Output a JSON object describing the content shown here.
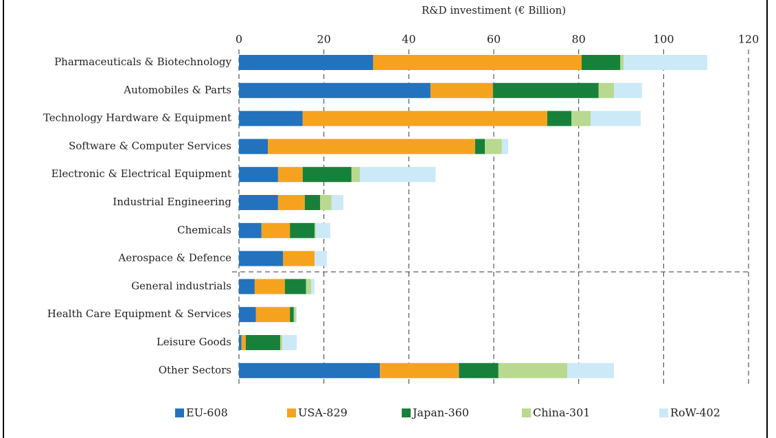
{
  "chart_data": {
    "type": "stacked-bar-horizontal",
    "xlabel": "R&D investiment (€ Billion)",
    "categories": [
      "Pharmaceuticals & Biotechnology",
      "Automobiles & Parts",
      "Technology Hardware & Equipment",
      "Software & Computer Services",
      "Electronic & Electrical Equipment",
      "Industrial Engineering",
      "Chemicals",
      "Aerospace & Defence",
      "General industrials",
      "Health Care Equipment & Services",
      "Leisure Goods",
      "Other Sectors"
    ],
    "series": [
      {
        "name": "EU-608",
        "color": "#2372bd",
        "values": [
          31.6,
          45.1,
          15.0,
          6.8,
          9.2,
          9.2,
          5.3,
          10.4,
          3.7,
          4.0,
          0.6,
          33.2
        ]
      },
      {
        "name": "USA-829",
        "color": "#f5a31f",
        "values": [
          49.1,
          14.7,
          57.6,
          48.8,
          5.8,
          6.3,
          6.7,
          7.4,
          7.1,
          8.0,
          1.0,
          18.6
        ]
      },
      {
        "name": "Japan-360",
        "color": "#17813b",
        "values": [
          9.1,
          24.9,
          5.7,
          2.3,
          11.5,
          3.6,
          5.8,
          0,
          5.0,
          0.9,
          8.1,
          9.3
        ]
      },
      {
        "name": "China-301",
        "color": "#b8d98f",
        "values": [
          0.8,
          3.6,
          4.5,
          4.0,
          2.0,
          2.7,
          0.3,
          0,
          1.2,
          0.5,
          0.5,
          16.2
        ]
      },
      {
        "name": "RoW-402",
        "color": "#cce9f8",
        "values": [
          19.7,
          6.6,
          11.8,
          1.5,
          17.8,
          2.8,
          3.4,
          2.9,
          0.8,
          0.2,
          3.4,
          11.0
        ]
      }
    ],
    "xlim": [
      0,
      120
    ],
    "xticks": [
      0,
      20,
      40,
      60,
      80,
      100,
      120
    ],
    "grid": true,
    "legend": "bottom"
  }
}
